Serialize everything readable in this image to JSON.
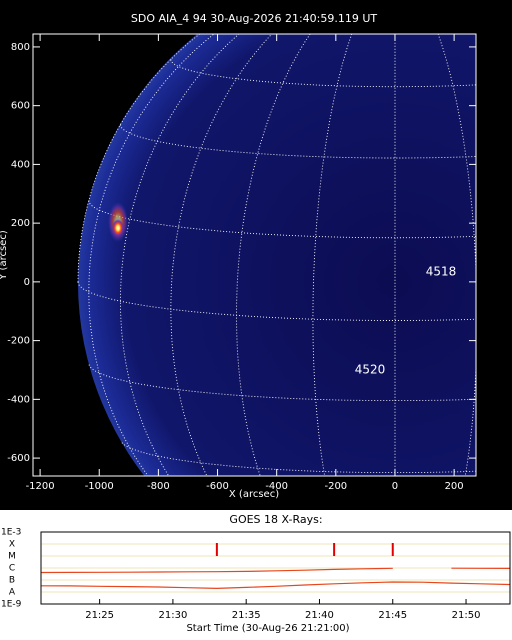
{
  "chart_data": [
    {
      "type": "image",
      "title": "SDO AIA_4 94 30-Aug-2026 21:40:59.119 UT",
      "xlabel": "X (arcsec)",
      "ylabel": "Y (arcsec)",
      "xlim": [
        -1224,
        274
      ],
      "ylim": [
        -661,
        844
      ],
      "xticks": [
        -1200,
        -1000,
        -800,
        -600,
        -400,
        -200,
        0,
        200
      ],
      "yticks": [
        -600,
        -400,
        -200,
        0,
        200,
        400,
        600,
        800
      ],
      "annotations": [
        "4518",
        "4520"
      ]
    },
    {
      "type": "line",
      "title": "GOES 18 X-Rays:",
      "xlabel": "Start Time (30-Aug-26 21:21:00)",
      "log_y": true,
      "xlim": [
        "21:21",
        "21:53"
      ],
      "ylim": [
        1e-09,
        0.001
      ],
      "xticks": [
        "21:25",
        "21:30",
        "21:35",
        "21:40",
        "21:45",
        "21:50"
      ],
      "yticks": [
        {
          "value": 0.001,
          "label": "1E-3"
        },
        {
          "value": 0.0001,
          "label": "X"
        },
        {
          "value": 1e-05,
          "label": "M"
        },
        {
          "value": 1e-06,
          "label": "C"
        },
        {
          "value": 1e-07,
          "label": "B"
        },
        {
          "value": 1e-08,
          "label": "A"
        },
        {
          "value": 1e-09,
          "label": "1E-9"
        }
      ],
      "x": [
        "21:21",
        "21:23",
        "21:25",
        "21:27",
        "21:29",
        "21:31",
        "21:33",
        "21:35",
        "21:37",
        "21:39",
        "21:41",
        "21:43",
        "21:45",
        "21:47",
        "21:49",
        "21:51",
        "21:53"
      ],
      "series": [
        {
          "color": "#e8461e",
          "values": [
            4.2e-07,
            4.3e-07,
            4.4e-07,
            4.5e-07,
            4.6e-07,
            4.8e-07,
            4.9e-07,
            5.2e-07,
            5.8e-07,
            6.6e-07,
            7.6e-07,
            8.6e-07,
            9.5e-07,
            null,
            9.6e-07,
            9.4e-07,
            9.2e-07
          ]
        },
        {
          "color": "#e8461e",
          "values": [
            3.3e-08,
            3.2e-08,
            3e-08,
            2.8e-08,
            2.6e-08,
            2.3e-08,
            2e-08,
            2.4e-08,
            3e-08,
            3.8e-08,
            4.8e-08,
            5.8e-08,
            6.8e-08,
            6.5e-08,
            5.5e-08,
            4.8e-08,
            4.2e-08
          ]
        }
      ],
      "flare_times": [
        "21:33",
        "21:41",
        "21:45"
      ],
      "flare_color": "#e00000"
    }
  ]
}
